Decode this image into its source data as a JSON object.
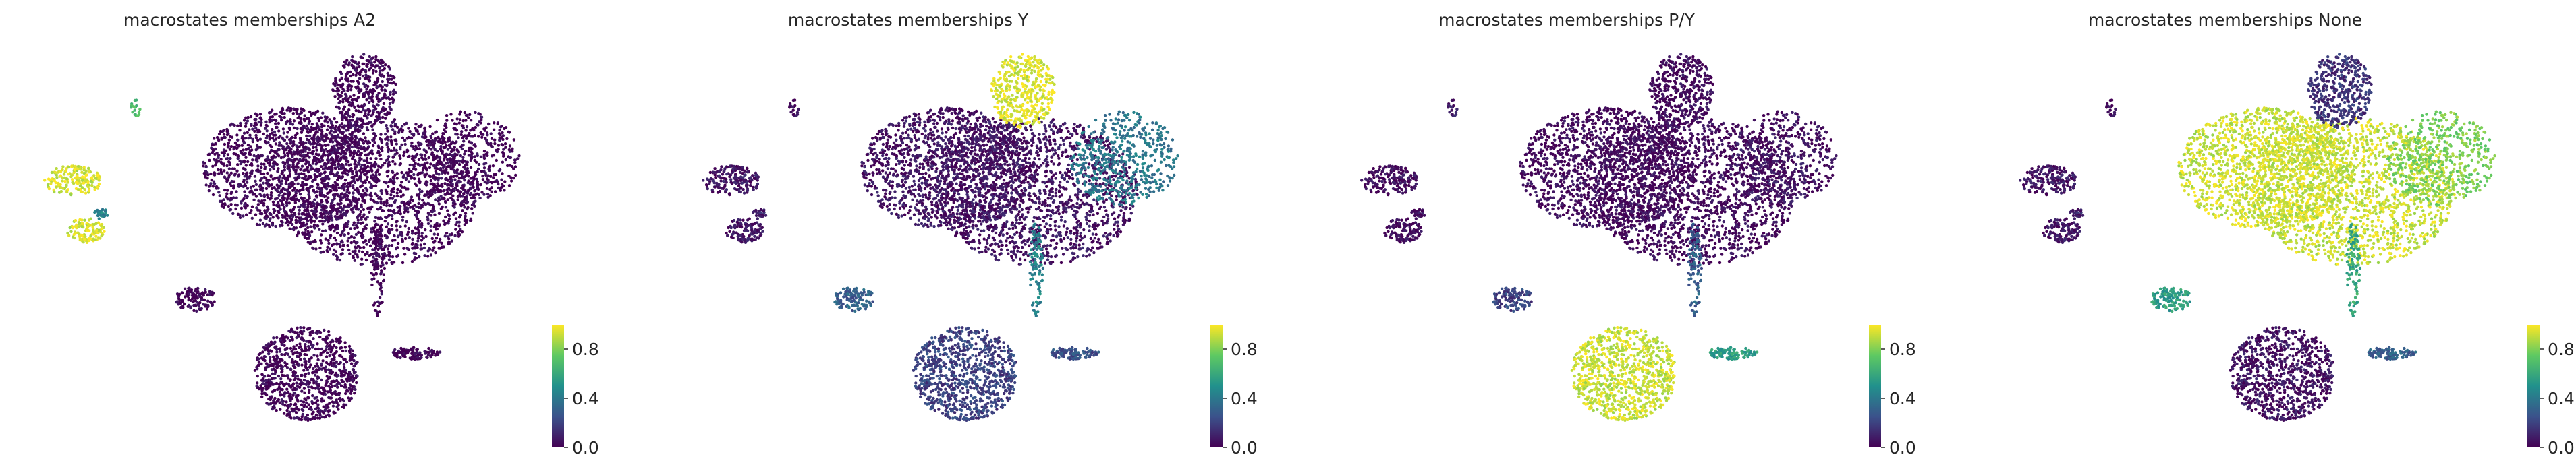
{
  "figure": {
    "layout": "1 row x 4 panels",
    "plot_type": "scatter embedding colored by value",
    "axes_visible": false,
    "colormap": "viridis",
    "colormap_colors": [
      "#440154",
      "#3b528b",
      "#21918c",
      "#5ec962",
      "#fde725"
    ]
  },
  "chart_data": [
    {
      "type": "scatter",
      "title": "macrostates memberships A2",
      "color_range": [
        0.0,
        1.0
      ],
      "colorbar_ticks": [
        "0.0",
        "0.4",
        "0.8"
      ],
      "cluster_values": {
        "main_body": 0.0,
        "upper_lobe": 0.0,
        "right_lobe": 0.0,
        "lower_body": 0.0,
        "lower_arm": 0.0,
        "stream": 0.0,
        "left_mid": 0.0,
        "left_islands": 0.93,
        "left_islands_edge": 0.45,
        "far_left_top": 0.7
      }
    },
    {
      "type": "scatter",
      "title": "macrostates memberships Y",
      "color_range": [
        0.0,
        1.0
      ],
      "colorbar_ticks": [
        "0.0",
        "0.4",
        "0.8"
      ],
      "cluster_values": {
        "main_body": 0.05,
        "upper_lobe": 0.95,
        "right_lobe": 0.4,
        "lower_body": 0.2,
        "lower_arm": 0.25,
        "stream": 0.45,
        "left_mid": 0.3,
        "left_islands": 0.05,
        "left_islands_edge": 0.1,
        "far_left_top": 0.05
      }
    },
    {
      "type": "scatter",
      "title": "macrostates memberships P/Y",
      "color_range": [
        0.0,
        1.0
      ],
      "colorbar_ticks": [
        "0.0",
        "0.4",
        "0.8"
      ],
      "cluster_values": {
        "main_body": 0.02,
        "upper_lobe": 0.02,
        "right_lobe": 0.05,
        "lower_body": 0.92,
        "lower_arm": 0.55,
        "stream": 0.3,
        "left_mid": 0.2,
        "left_islands": 0.02,
        "left_islands_edge": 0.05,
        "far_left_top": 0.1
      }
    },
    {
      "type": "scatter",
      "title": "macrostates memberships None",
      "color_range": [
        0.0,
        1.0
      ],
      "colorbar_ticks": [
        "0.0",
        "0.4",
        "0.8"
      ],
      "cluster_values": {
        "main_body": 0.92,
        "upper_lobe": 0.15,
        "right_lobe": 0.8,
        "lower_body": 0.05,
        "lower_arm": 0.3,
        "stream": 0.6,
        "left_mid": 0.55,
        "left_islands": 0.05,
        "left_islands_edge": 0.1,
        "far_left_top": 0.05
      }
    }
  ]
}
